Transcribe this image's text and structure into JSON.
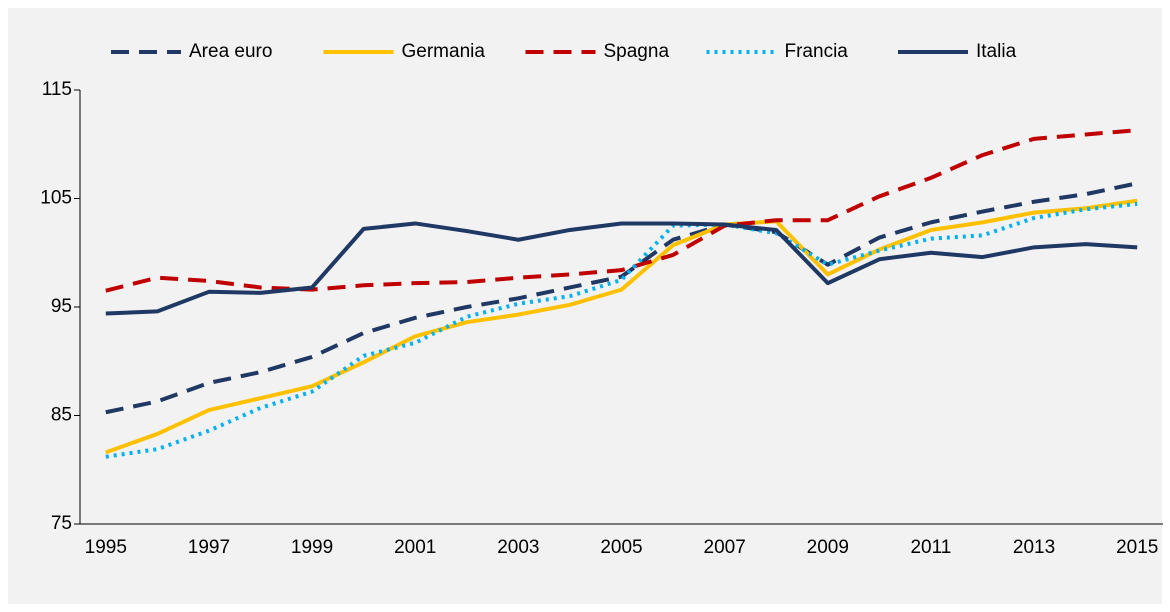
{
  "chart_data": {
    "type": "line",
    "categories": [
      "1995",
      null,
      "1997",
      null,
      "1999",
      null,
      "2001",
      null,
      "2003",
      null,
      "2005",
      null,
      "2007",
      null,
      "2009",
      null,
      "2011",
      null,
      "2013",
      null,
      "2015"
    ],
    "series": [
      {
        "name": "Area euro",
        "color": "#1f3864",
        "dash": "dashed",
        "values": [
          85.3,
          86.3,
          88.0,
          89.0,
          90.4,
          92.6,
          94.0,
          95.0,
          95.8,
          96.8,
          97.8,
          101.2,
          102.6,
          101.9,
          98.9,
          101.4,
          102.8,
          103.8,
          104.7,
          105.4,
          106.4
        ]
      },
      {
        "name": "Germania",
        "color": "#ffc000",
        "dash": "solid",
        "values": [
          81.6,
          83.3,
          85.5,
          86.6,
          87.7,
          89.9,
          92.3,
          93.6,
          94.3,
          95.2,
          96.6,
          100.7,
          102.6,
          102.9,
          98.0,
          100.3,
          102.1,
          102.8,
          103.7,
          104.1,
          104.8
        ]
      },
      {
        "name": "Spagna",
        "color": "#c00000",
        "dash": "dashed",
        "values": [
          96.5,
          97.7,
          97.4,
          96.8,
          96.6,
          97.0,
          97.2,
          97.3,
          97.7,
          98.0,
          98.4,
          99.8,
          102.5,
          103.0,
          103.0,
          105.2,
          106.9,
          109.0,
          110.5,
          110.9,
          111.3
        ]
      },
      {
        "name": "Francia",
        "color": "#00b0f0",
        "dash": "dotted",
        "values": [
          81.2,
          81.9,
          83.6,
          85.7,
          87.2,
          90.5,
          91.7,
          94.1,
          95.3,
          96.0,
          97.5,
          102.5,
          102.6,
          101.8,
          98.9,
          100.2,
          101.3,
          101.6,
          103.2,
          104.0,
          104.5
        ]
      },
      {
        "name": "Italia",
        "color": "#1f3864",
        "dash": "solid",
        "values": [
          94.4,
          94.6,
          96.4,
          96.3,
          96.8,
          102.2,
          102.7,
          102.0,
          101.2,
          102.1,
          102.7,
          102.7,
          102.6,
          102.1,
          97.2,
          99.4,
          100.0,
          99.6,
          100.5,
          100.8,
          100.5
        ]
      }
    ],
    "ylim": [
      75,
      115
    ],
    "yticks": [
      75,
      85,
      95,
      105,
      115
    ],
    "grid": false,
    "legend": "top"
  }
}
